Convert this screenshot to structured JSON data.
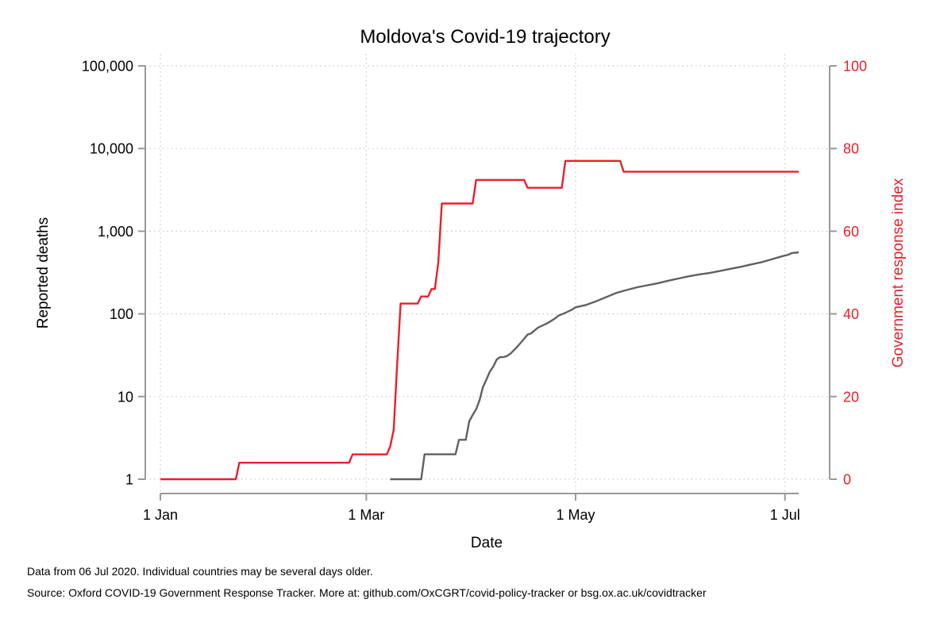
{
  "chart_data": {
    "type": "line",
    "title": "Moldova's Covid-19 trajectory",
    "xlabel": "Date",
    "ylabel_left": "Reported deaths",
    "ylabel_right": "Government response index",
    "x_range": [
      "2020-01-01",
      "2020-07-05"
    ],
    "x_ticks": [
      {
        "date": "2020-01-01",
        "label": "1 Jan"
      },
      {
        "date": "2020-03-01",
        "label": "1 Mar"
      },
      {
        "date": "2020-05-01",
        "label": "1 May"
      },
      {
        "date": "2020-07-01",
        "label": "1 Jul"
      }
    ],
    "y_left": {
      "scale": "log",
      "range": [
        1,
        100000
      ],
      "ticks": [
        1,
        10,
        100,
        1000,
        10000,
        100000
      ],
      "tick_labels": [
        "1",
        "10",
        "100",
        "1,000",
        "10,000",
        "100,000"
      ]
    },
    "y_right": {
      "scale": "linear",
      "range": [
        0,
        100
      ],
      "ticks": [
        0,
        20,
        40,
        60,
        80,
        100
      ],
      "tick_labels": [
        "0",
        "20",
        "40",
        "60",
        "80",
        "100"
      ]
    },
    "grid": true,
    "colors": {
      "deaths": "#606060",
      "index": "#e8202a",
      "axis": "#999999",
      "grid": "#c8c8c8"
    },
    "series": [
      {
        "key": "index",
        "axis": "right",
        "step": true,
        "points": [
          [
            "2020-01-01",
            0
          ],
          [
            "2020-01-23",
            0
          ],
          [
            "2020-01-24",
            4
          ],
          [
            "2020-02-25",
            4
          ],
          [
            "2020-02-26",
            6
          ],
          [
            "2020-03-07",
            6
          ],
          [
            "2020-03-08",
            8
          ],
          [
            "2020-03-09",
            12
          ],
          [
            "2020-03-10",
            28
          ],
          [
            "2020-03-11",
            42.5
          ],
          [
            "2020-03-16",
            42.5
          ],
          [
            "2020-03-17",
            44.2
          ],
          [
            "2020-03-19",
            44.2
          ],
          [
            "2020-03-20",
            46
          ],
          [
            "2020-03-21",
            46
          ],
          [
            "2020-03-22",
            52.5
          ],
          [
            "2020-03-23",
            66.7
          ],
          [
            "2020-04-01",
            66.7
          ],
          [
            "2020-04-02",
            72.4
          ],
          [
            "2020-04-16",
            72.4
          ],
          [
            "2020-04-17",
            70.5
          ],
          [
            "2020-04-27",
            70.5
          ],
          [
            "2020-04-28",
            77
          ],
          [
            "2020-05-14",
            77
          ],
          [
            "2020-05-15",
            74.4
          ],
          [
            "2020-07-05",
            74.4
          ]
        ]
      },
      {
        "key": "deaths",
        "axis": "left",
        "step": false,
        "points": [
          [
            "2020-03-08",
            1
          ],
          [
            "2020-03-17",
            1
          ],
          [
            "2020-03-18",
            2
          ],
          [
            "2020-03-27",
            2
          ],
          [
            "2020-03-28",
            3
          ],
          [
            "2020-03-30",
            3
          ],
          [
            "2020-03-31",
            5
          ],
          [
            "2020-04-01",
            6
          ],
          [
            "2020-04-02",
            7
          ],
          [
            "2020-04-03",
            9
          ],
          [
            "2020-04-04",
            13
          ],
          [
            "2020-04-05",
            16
          ],
          [
            "2020-04-06",
            20
          ],
          [
            "2020-04-07",
            23
          ],
          [
            "2020-04-08",
            28
          ],
          [
            "2020-04-09",
            30
          ],
          [
            "2020-04-10",
            30
          ],
          [
            "2020-04-11",
            31
          ],
          [
            "2020-04-12",
            33
          ],
          [
            "2020-04-14",
            40
          ],
          [
            "2020-04-16",
            50
          ],
          [
            "2020-04-17",
            56
          ],
          [
            "2020-04-18",
            58
          ],
          [
            "2020-04-20",
            68
          ],
          [
            "2020-04-23",
            78
          ],
          [
            "2020-04-25",
            88
          ],
          [
            "2020-04-26",
            95
          ],
          [
            "2020-04-28",
            103
          ],
          [
            "2020-04-30",
            113
          ],
          [
            "2020-05-01",
            120
          ],
          [
            "2020-05-04",
            128
          ],
          [
            "2020-05-07",
            142
          ],
          [
            "2020-05-10",
            160
          ],
          [
            "2020-05-13",
            180
          ],
          [
            "2020-05-16",
            195
          ],
          [
            "2020-05-19",
            210
          ],
          [
            "2020-05-22",
            222
          ],
          [
            "2020-05-25",
            235
          ],
          [
            "2020-05-28",
            252
          ],
          [
            "2020-05-31",
            268
          ],
          [
            "2020-06-03",
            285
          ],
          [
            "2020-06-06",
            300
          ],
          [
            "2020-06-09",
            312
          ],
          [
            "2020-06-12",
            330
          ],
          [
            "2020-06-15",
            350
          ],
          [
            "2020-06-18",
            370
          ],
          [
            "2020-06-21",
            395
          ],
          [
            "2020-06-24",
            420
          ],
          [
            "2020-06-27",
            455
          ],
          [
            "2020-06-30",
            495
          ],
          [
            "2020-07-02",
            520
          ],
          [
            "2020-07-03",
            545
          ],
          [
            "2020-07-05",
            555
          ]
        ]
      }
    ]
  },
  "notes": {
    "line1": "Data from 06 Jul 2020. Individual countries may be several days older.",
    "line2": "Source: Oxford COVID-19 Government Response Tracker. More at: github.com/OxCGRT/covid-policy-tracker or bsg.ox.ac.uk/covidtracker"
  }
}
